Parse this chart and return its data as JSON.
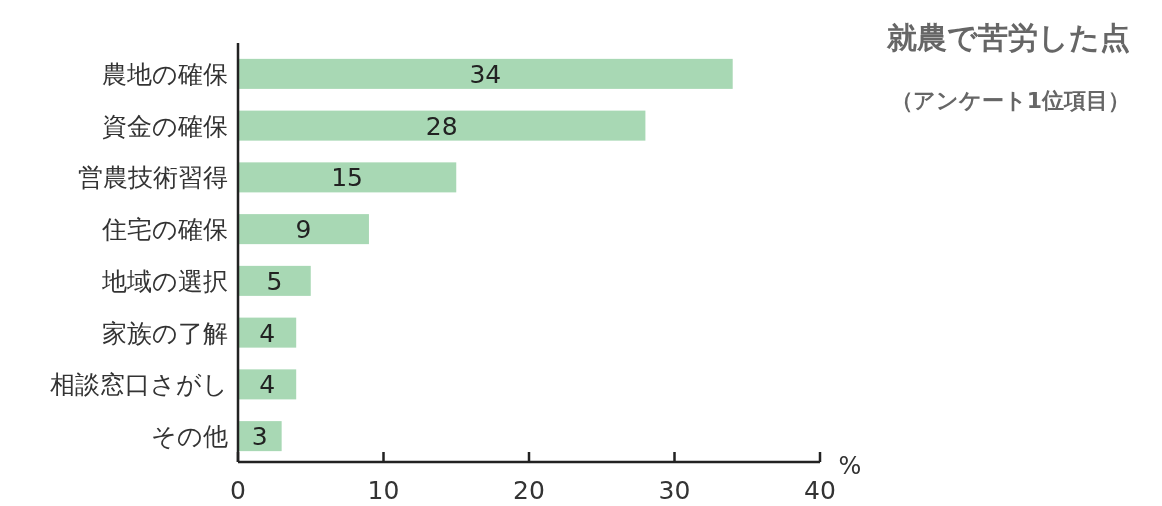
{
  "chart_data": {
    "type": "bar",
    "orientation": "horizontal",
    "title": "就農で苦労した点",
    "subtitle": "（アンケート1位項目）",
    "categories": [
      "農地の確保",
      "資金の確保",
      "営農技術習得",
      "住宅の確保",
      "地域の選択",
      "家族の了解",
      "相談窓口さがし",
      "その他"
    ],
    "values": [
      34,
      28,
      15,
      9,
      5,
      4,
      4,
      3
    ],
    "color": "#a8d8b4",
    "data_labels": true,
    "xlabel": "%",
    "xlim": [
      0,
      40
    ],
    "xticks": [
      0,
      10,
      20,
      30,
      40
    ],
    "grid": false
  }
}
